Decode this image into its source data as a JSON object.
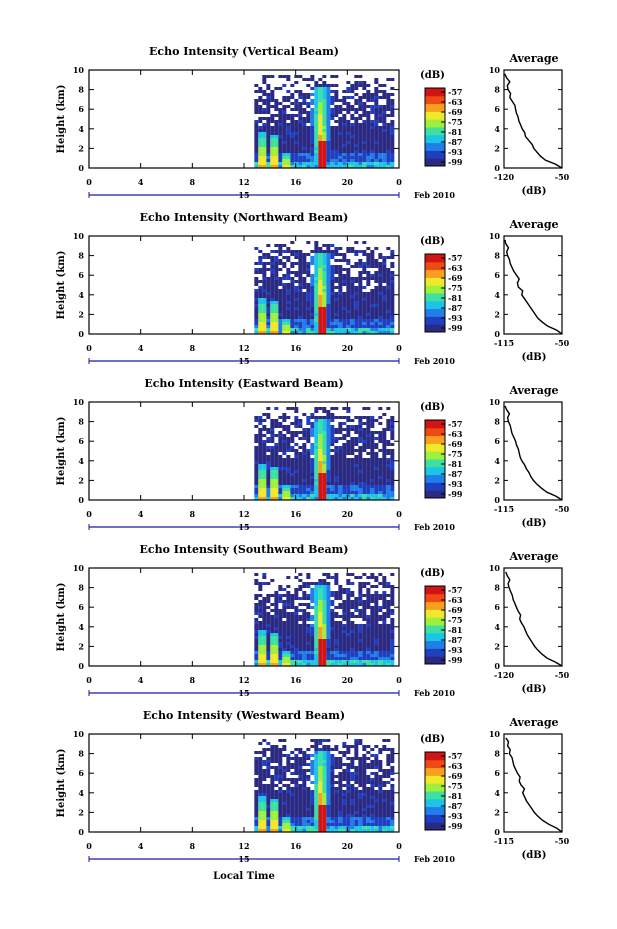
{
  "figure": {
    "xlabel": "Local Time",
    "date_label": "Feb 2010",
    "day_label": "15"
  },
  "chart_data": [
    {
      "type": "heatmap",
      "title": "Echo Intensity (Vertical Beam)",
      "ylabel": "Height (km)",
      "x_ticks": [
        "0",
        "4",
        "8",
        "12",
        "16",
        "20",
        "0"
      ],
      "y_ticks": [
        "0",
        "2",
        "4",
        "6",
        "8",
        "10"
      ],
      "xlim": [
        0,
        24
      ],
      "ylim": [
        0,
        10
      ],
      "data_start_hour": 12.8,
      "plume_hour": 17.8,
      "colorbar": {
        "label": "(dB)",
        "ticks": [
          "-57",
          "-63",
          "-69",
          "-75",
          "-81",
          "-87",
          "-93",
          "-99"
        ]
      },
      "avg": {
        "title": "Average",
        "xlabel": "(dB)",
        "xlim": [
          -120,
          -50
        ],
        "x_ticks": [
          "-120",
          "-50"
        ],
        "y_ticks": [
          "0",
          "2",
          "4",
          "6",
          "8",
          "10"
        ],
        "profile": [
          [
            -50,
            0
          ],
          [
            -58,
            0.4
          ],
          [
            -70,
            0.8
          ],
          [
            -76,
            1.2
          ],
          [
            -80,
            1.6
          ],
          [
            -84,
            2.0
          ],
          [
            -86,
            2.4
          ],
          [
            -90,
            2.8
          ],
          [
            -94,
            3.2
          ],
          [
            -95,
            3.6
          ],
          [
            -98,
            4.0
          ],
          [
            -100,
            4.4
          ],
          [
            -102,
            4.8
          ],
          [
            -103,
            5.2
          ],
          [
            -105,
            5.6
          ],
          [
            -106,
            6.0
          ],
          [
            -107,
            6.4
          ],
          [
            -110,
            6.8
          ],
          [
            -113,
            7.2
          ],
          [
            -112,
            7.6
          ],
          [
            -115,
            8.0
          ],
          [
            -116,
            8.4
          ],
          [
            -113,
            8.8
          ],
          [
            -117,
            9.2
          ],
          [
            -119,
            9.6
          ]
        ]
      }
    },
    {
      "type": "heatmap",
      "title": "Echo Intensity (Northward Beam)",
      "ylabel": "Height (km)",
      "x_ticks": [
        "0",
        "4",
        "8",
        "12",
        "16",
        "20",
        "0"
      ],
      "y_ticks": [
        "0",
        "2",
        "4",
        "6",
        "8",
        "10"
      ],
      "xlim": [
        0,
        24
      ],
      "ylim": [
        0,
        10
      ],
      "data_start_hour": 12.8,
      "plume_hour": 17.8,
      "colorbar": {
        "label": "(dB)",
        "ticks": [
          "-57",
          "-63",
          "-69",
          "-75",
          "-81",
          "-87",
          "-93",
          "-99"
        ]
      },
      "avg": {
        "title": "Average",
        "xlabel": "(dB)",
        "xlim": [
          -115,
          -50
        ],
        "x_ticks": [
          "-115",
          "-50"
        ],
        "y_ticks": [
          "0",
          "2",
          "4",
          "6",
          "8",
          "10"
        ],
        "profile": [
          [
            -50,
            0
          ],
          [
            -56,
            0.4
          ],
          [
            -66,
            0.8
          ],
          [
            -72,
            1.2
          ],
          [
            -77,
            1.6
          ],
          [
            -80,
            2.0
          ],
          [
            -83,
            2.4
          ],
          [
            -86,
            2.8
          ],
          [
            -89,
            3.2
          ],
          [
            -92,
            3.6
          ],
          [
            -95,
            4.0
          ],
          [
            -94,
            4.4
          ],
          [
            -99,
            4.8
          ],
          [
            -100,
            5.2
          ],
          [
            -98,
            5.6
          ],
          [
            -101,
            6.0
          ],
          [
            -104,
            6.4
          ],
          [
            -106,
            6.8
          ],
          [
            -108,
            7.2
          ],
          [
            -109,
            7.6
          ],
          [
            -111,
            8.0
          ],
          [
            -112,
            8.4
          ],
          [
            -110,
            8.8
          ],
          [
            -113,
            9.2
          ],
          [
            -114,
            9.6
          ]
        ]
      }
    },
    {
      "type": "heatmap",
      "title": "Echo Intensity (Eastward Beam)",
      "ylabel": "Height (km)",
      "x_ticks": [
        "0",
        "4",
        "8",
        "12",
        "16",
        "20",
        "0"
      ],
      "y_ticks": [
        "0",
        "2",
        "4",
        "6",
        "8",
        "10"
      ],
      "xlim": [
        0,
        24
      ],
      "ylim": [
        0,
        10
      ],
      "data_start_hour": 12.8,
      "plume_hour": 17.8,
      "colorbar": {
        "label": "(dB)",
        "ticks": [
          "-57",
          "-63",
          "-69",
          "-75",
          "-81",
          "-87",
          "-93",
          "-99"
        ]
      },
      "avg": {
        "title": "Average",
        "xlabel": "(dB)",
        "xlim": [
          -115,
          -50
        ],
        "x_ticks": [
          "-115",
          "-50"
        ],
        "y_ticks": [
          "0",
          "2",
          "4",
          "6",
          "8",
          "10"
        ],
        "profile": [
          [
            -50,
            0
          ],
          [
            -57,
            0.4
          ],
          [
            -67,
            0.8
          ],
          [
            -73,
            1.2
          ],
          [
            -78,
            1.6
          ],
          [
            -82,
            2.0
          ],
          [
            -85,
            2.4
          ],
          [
            -87,
            2.8
          ],
          [
            -90,
            3.2
          ],
          [
            -92,
            3.6
          ],
          [
            -95,
            4.0
          ],
          [
            -97,
            4.4
          ],
          [
            -98,
            4.8
          ],
          [
            -99,
            5.2
          ],
          [
            -101,
            5.6
          ],
          [
            -102,
            6.0
          ],
          [
            -104,
            6.4
          ],
          [
            -106,
            6.8
          ],
          [
            -107,
            7.2
          ],
          [
            -108,
            7.6
          ],
          [
            -110,
            8.0
          ],
          [
            -111,
            8.4
          ],
          [
            -109,
            8.8
          ],
          [
            -112,
            9.2
          ],
          [
            -114,
            9.6
          ]
        ]
      }
    },
    {
      "type": "heatmap",
      "title": "Echo Intensity (Southward Beam)",
      "ylabel": "Height (km)",
      "x_ticks": [
        "0",
        "4",
        "8",
        "12",
        "16",
        "20",
        "0"
      ],
      "y_ticks": [
        "0",
        "2",
        "4",
        "6",
        "8",
        "10"
      ],
      "xlim": [
        0,
        24
      ],
      "ylim": [
        0,
        10
      ],
      "data_start_hour": 12.8,
      "plume_hour": 17.8,
      "colorbar": {
        "label": "(dB)",
        "ticks": [
          "-57",
          "-63",
          "-69",
          "-75",
          "-81",
          "-87",
          "-93",
          "-99"
        ]
      },
      "avg": {
        "title": "Average",
        "xlabel": "(dB)",
        "xlim": [
          -120,
          -50
        ],
        "x_ticks": [
          "-120",
          "-50"
        ],
        "y_ticks": [
          "0",
          "2",
          "4",
          "6",
          "8",
          "10"
        ],
        "profile": [
          [
            -50,
            0
          ],
          [
            -58,
            0.4
          ],
          [
            -68,
            0.8
          ],
          [
            -74,
            1.2
          ],
          [
            -79,
            1.6
          ],
          [
            -83,
            2.0
          ],
          [
            -86,
            2.4
          ],
          [
            -89,
            2.8
          ],
          [
            -92,
            3.2
          ],
          [
            -94,
            3.6
          ],
          [
            -96,
            4.0
          ],
          [
            -99,
            4.4
          ],
          [
            -101,
            4.8
          ],
          [
            -100,
            5.2
          ],
          [
            -103,
            5.6
          ],
          [
            -105,
            6.0
          ],
          [
            -107,
            6.4
          ],
          [
            -109,
            6.8
          ],
          [
            -110,
            7.2
          ],
          [
            -112,
            7.6
          ],
          [
            -114,
            8.0
          ],
          [
            -115,
            8.4
          ],
          [
            -113,
            8.8
          ],
          [
            -116,
            9.2
          ],
          [
            -118,
            9.6
          ]
        ]
      }
    },
    {
      "type": "heatmap",
      "title": "Echo Intensity (Westward Beam)",
      "ylabel": "Height (km)",
      "x_ticks": [
        "0",
        "4",
        "8",
        "12",
        "16",
        "20",
        "0"
      ],
      "y_ticks": [
        "0",
        "2",
        "4",
        "6",
        "8",
        "10"
      ],
      "xlim": [
        0,
        24
      ],
      "ylim": [
        0,
        10
      ],
      "data_start_hour": 12.8,
      "plume_hour": 17.8,
      "colorbar": {
        "label": "(dB)",
        "ticks": [
          "-57",
          "-63",
          "-69",
          "-75",
          "-81",
          "-87",
          "-93",
          "-99"
        ]
      },
      "avg": {
        "title": "Average",
        "xlabel": "(dB)",
        "xlim": [
          -115,
          -50
        ],
        "x_ticks": [
          "-115",
          "-50"
        ],
        "y_ticks": [
          "0",
          "2",
          "4",
          "6",
          "8",
          "10"
        ],
        "profile": [
          [
            -50,
            0
          ],
          [
            -56,
            0.4
          ],
          [
            -65,
            0.8
          ],
          [
            -72,
            1.2
          ],
          [
            -77,
            1.6
          ],
          [
            -81,
            2.0
          ],
          [
            -84,
            2.4
          ],
          [
            -87,
            2.8
          ],
          [
            -90,
            3.2
          ],
          [
            -92,
            3.6
          ],
          [
            -94,
            4.0
          ],
          [
            -92,
            4.4
          ],
          [
            -96,
            4.8
          ],
          [
            -98,
            5.2
          ],
          [
            -97,
            5.6
          ],
          [
            -100,
            6.0
          ],
          [
            -102,
            6.4
          ],
          [
            -104,
            6.8
          ],
          [
            -105,
            7.2
          ],
          [
            -106,
            7.6
          ],
          [
            -109,
            8.0
          ],
          [
            -108,
            8.4
          ],
          [
            -111,
            8.8
          ],
          [
            -110,
            9.2
          ],
          [
            -113,
            9.6
          ]
        ]
      }
    }
  ],
  "colors": {
    "scale": [
      "#2a2a82",
      "#1f3fc0",
      "#1f7ee8",
      "#1cc4e6",
      "#3ce0a0",
      "#9ef03c",
      "#f0e82a",
      "#f7a020",
      "#f04a14",
      "#d11414"
    ],
    "background": "#ffffff"
  }
}
